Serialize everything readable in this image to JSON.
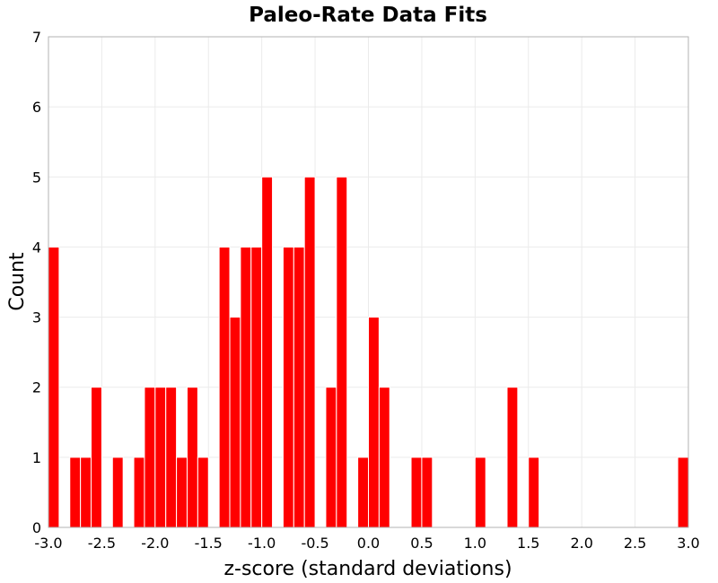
{
  "chart_data": {
    "type": "bar",
    "title": "Paleo-Rate Data Fits",
    "xlabel": "z-score (standard deviations)",
    "ylabel": "Count",
    "xlim": [
      -3.0,
      3.0
    ],
    "ylim": [
      0,
      7
    ],
    "bin_width": 0.1,
    "x_ticks": [
      "-3.0",
      "-2.5",
      "-2.0",
      "-1.5",
      "-1.0",
      "-0.5",
      "0.0",
      "0.5",
      "1.0",
      "1.5",
      "2.0",
      "2.5",
      "3.0"
    ],
    "y_ticks": [
      "0",
      "1",
      "2",
      "3",
      "4",
      "5",
      "6",
      "7"
    ],
    "grid": true,
    "bar_color": "#ff0000",
    "bins": [
      {
        "x": -3.0,
        "count": 4
      },
      {
        "x": -2.8,
        "count": 1
      },
      {
        "x": -2.7,
        "count": 1
      },
      {
        "x": -2.6,
        "count": 2
      },
      {
        "x": -2.4,
        "count": 1
      },
      {
        "x": -2.2,
        "count": 1
      },
      {
        "x": -2.1,
        "count": 2
      },
      {
        "x": -2.0,
        "count": 2
      },
      {
        "x": -1.9,
        "count": 2
      },
      {
        "x": -1.8,
        "count": 1
      },
      {
        "x": -1.7,
        "count": 2
      },
      {
        "x": -1.6,
        "count": 1
      },
      {
        "x": -1.4,
        "count": 4
      },
      {
        "x": -1.3,
        "count": 3
      },
      {
        "x": -1.2,
        "count": 4
      },
      {
        "x": -1.1,
        "count": 4
      },
      {
        "x": -1.0,
        "count": 5
      },
      {
        "x": -0.8,
        "count": 4
      },
      {
        "x": -0.7,
        "count": 4
      },
      {
        "x": -0.6,
        "count": 5
      },
      {
        "x": -0.4,
        "count": 2
      },
      {
        "x": -0.3,
        "count": 5
      },
      {
        "x": -0.1,
        "count": 1
      },
      {
        "x": 0.0,
        "count": 3
      },
      {
        "x": 0.1,
        "count": 2
      },
      {
        "x": 0.4,
        "count": 1
      },
      {
        "x": 0.5,
        "count": 1
      },
      {
        "x": 1.0,
        "count": 1
      },
      {
        "x": 1.3,
        "count": 2
      },
      {
        "x": 1.5,
        "count": 1
      },
      {
        "x": 2.9,
        "count": 1
      }
    ]
  }
}
